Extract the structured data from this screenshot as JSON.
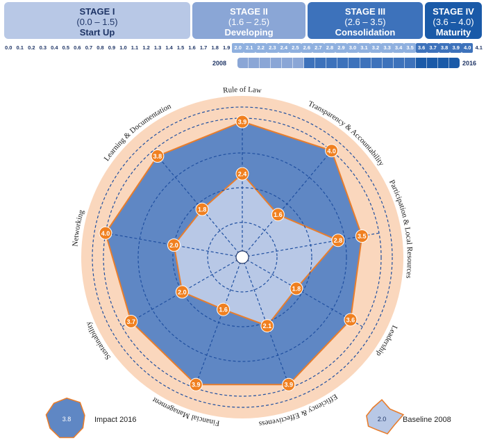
{
  "stages": [
    {
      "name": "STAGE I",
      "range": "(0.0 – 1.5)",
      "label": "Start Up"
    },
    {
      "name": "STAGE II",
      "range": "(1.6 – 2.5)",
      "label": "Developing"
    },
    {
      "name": "STAGE III",
      "range": "(2.6 – 3.5)",
      "label": "Consolidation"
    },
    {
      "name": "STAGE IV",
      "range": "(3.6 – 4.0)",
      "label": "Maturity"
    }
  ],
  "scale_ticks": [
    "0.0",
    "0.1",
    "0.2",
    "0.3",
    "0.4",
    "0.5",
    "0.6",
    "0.7",
    "0.8",
    "0.9",
    "1.0",
    "1.1",
    "1.2",
    "1.3",
    "1.4",
    "1.5",
    "1.6",
    "1.7",
    "1.8",
    "1.9",
    "2.0",
    "2.1",
    "2.2",
    "2.3",
    "2.4",
    "2.5",
    "2.6",
    "2.7",
    "2.8",
    "2.9",
    "3.0",
    "3.1",
    "3.2",
    "3.3",
    "3.4",
    "3.5",
    "3.6",
    "3.7",
    "3.8",
    "3.9",
    "4.0",
    "4.1"
  ],
  "progress": {
    "start_label": "2008",
    "end_label": "2016",
    "start_value": 2.0,
    "end_value": 3.9
  },
  "colors": {
    "stage1": "#b8c8e6",
    "stage2": "#8aa6d6",
    "stage3": "#3d72bb",
    "stage4": "#1a5aa8",
    "impact_fill": "#5f87c4",
    "baseline_fill": "#b8c8e6",
    "outline": "#e87d2c",
    "outer_ring": "#fad7bd",
    "marker": "#f08020",
    "grid": "#1f4fa0"
  },
  "chart_data": {
    "type": "radar",
    "axes": [
      "Rule of Law",
      "Transparency & Accountability",
      "Participation & Local Resources",
      "Leadership",
      "Efficiency & Effectiveness",
      "Financial Management",
      "Sustainability",
      "Networking",
      "Learning & Documentation"
    ],
    "range": [
      0,
      4.0
    ],
    "series": [
      {
        "name": "Impact 2016",
        "values": [
          3.9,
          4.0,
          3.5,
          3.6,
          3.9,
          3.9,
          3.7,
          4.0,
          3.8
        ]
      },
      {
        "name": "Baseline 2008",
        "values": [
          2.4,
          1.6,
          2.8,
          1.8,
          2.1,
          1.6,
          2.0,
          2.0,
          1.8
        ]
      }
    ],
    "labels_impact": [
      "3.9",
      "4.0",
      "3.5",
      "3.6",
      "3.9",
      "3.9",
      "3.7",
      "4.0",
      "3.8"
    ],
    "labels_baseline": [
      "2.4",
      "1.6",
      "2.8",
      "1.8",
      "2.1",
      "1.6",
      "2.0",
      "2.0",
      "1.8"
    ],
    "legend": [
      {
        "name": "Impact 2016",
        "sample": "3.8"
      },
      {
        "name": "Baseline 2008",
        "sample": "2.0"
      }
    ]
  }
}
